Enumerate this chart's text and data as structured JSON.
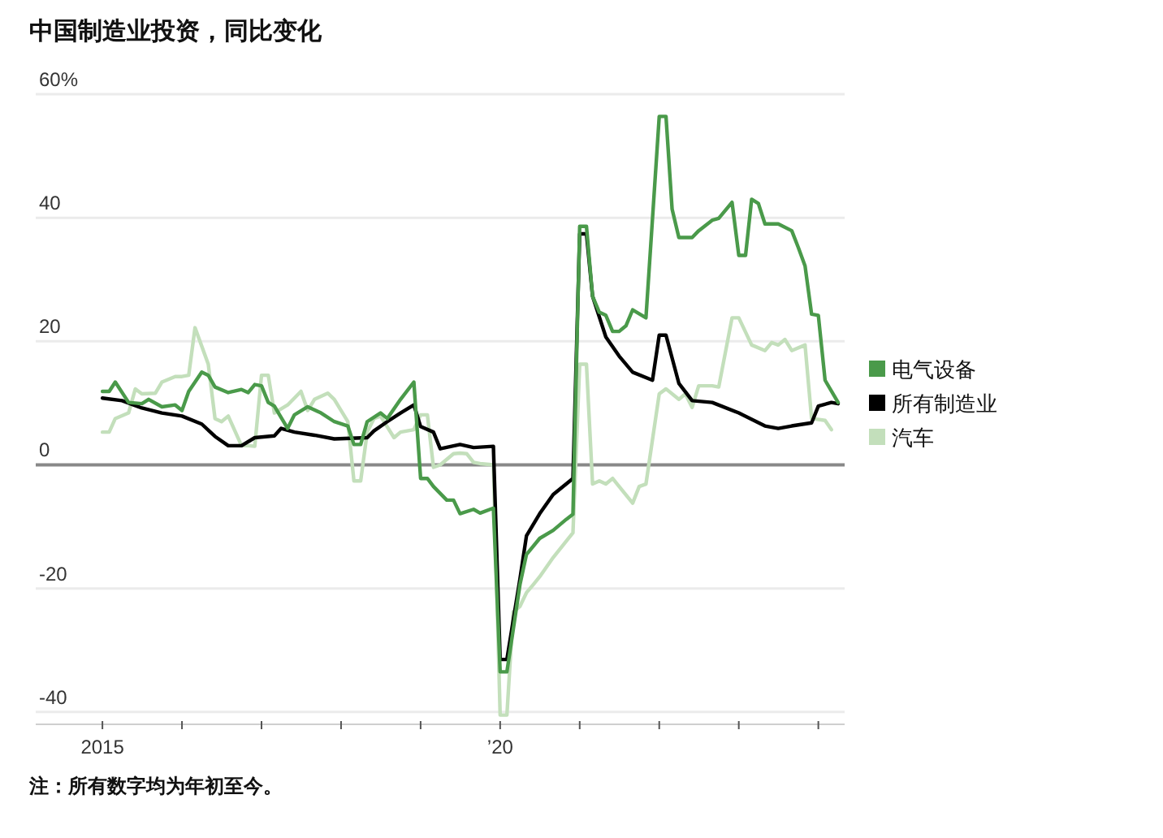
{
  "chart_data": {
    "type": "line",
    "title": "中国制造业投资，同比变化",
    "annotations": [
      "注：所有数字均为年初至今。"
    ],
    "xlim": [
      "2014-03",
      "2024-05"
    ],
    "xticks": [
      {
        "value": "2015-01",
        "label": "2015"
      },
      {
        "value": "2016-01",
        "label": null
      },
      {
        "value": "2017-01",
        "label": null
      },
      {
        "value": "2018-01",
        "label": null
      },
      {
        "value": "2019-01",
        "label": null
      },
      {
        "value": "2020-01",
        "label": "’20"
      },
      {
        "value": "2021-01",
        "label": null
      },
      {
        "value": "2022-01",
        "label": null
      },
      {
        "value": "2023-01",
        "label": null
      },
      {
        "value": "2024-01",
        "label": null
      }
    ],
    "ylim": [
      -42,
      60
    ],
    "yticks": [
      -40,
      -20,
      0,
      20,
      40,
      {
        "value": 60,
        "label": "60%"
      }
    ],
    "grid": "y",
    "legend": "right",
    "series": [
      {
        "name": "电气设备",
        "color": "#4a9a4a",
        "x": [
          "2015-01",
          "2015-02",
          "2015-03",
          "2015-05",
          "2015-07",
          "2015-08",
          "2015-10",
          "2015-12",
          "2016-01",
          "2016-02",
          "2016-04",
          "2016-05",
          "2016-06",
          "2016-08",
          "2016-10",
          "2016-11",
          "2016-12",
          "2017-01",
          "2017-02",
          "2017-03",
          "2017-05",
          "2017-06",
          "2017-08",
          "2017-10",
          "2017-12",
          "2018-02",
          "2018-03",
          "2018-04",
          "2018-05",
          "2018-07",
          "2018-08",
          "2018-10",
          "2018-12",
          "2019-01",
          "2019-02",
          "2019-03",
          "2019-05",
          "2019-06",
          "2019-07",
          "2019-09",
          "2019-10",
          "2019-12",
          "2020-01",
          "2020-02",
          "2020-04",
          "2020-05",
          "2020-07",
          "2020-09",
          "2020-11",
          "2020-12",
          "2021-01",
          "2021-02",
          "2021-03",
          "2021-04",
          "2021-05",
          "2021-06",
          "2021-07",
          "2021-08",
          "2021-09",
          "2021-11",
          "2022-01",
          "2022-02",
          "2022-03",
          "2022-04",
          "2022-06",
          "2022-07",
          "2022-09",
          "2022-10",
          "2022-12",
          "2023-01",
          "2023-02",
          "2023-03",
          "2023-04",
          "2023-05",
          "2023-07",
          "2023-09",
          "2023-10",
          "2023-11",
          "2023-12",
          "2024-01",
          "2024-02",
          "2024-04"
        ],
        "values": [
          11.9,
          11.9,
          13.4,
          10.1,
          9.9,
          10.6,
          9.4,
          9.7,
          8.8,
          11.9,
          15,
          14.5,
          12.6,
          11.7,
          12.2,
          11.7,
          13,
          12.8,
          10.1,
          9.5,
          5.9,
          8.1,
          9.4,
          8.4,
          7,
          6.3,
          3.3,
          3.3,
          7,
          8.4,
          7.5,
          10.6,
          13.4,
          -2.2,
          -2.2,
          -3.5,
          -5.7,
          -5.7,
          -7.9,
          -7.2,
          -7.8,
          -7,
          -33.5,
          -33.5,
          -19.4,
          -14.5,
          -11.9,
          -10.6,
          -8.8,
          -8,
          38.6,
          38.6,
          27.3,
          24.7,
          24.2,
          21.6,
          21.6,
          22.5,
          25.1,
          23.8,
          56.4,
          56.4,
          41.4,
          36.8,
          36.8,
          37.9,
          39.6,
          39.9,
          42.5,
          33.9,
          33.9,
          43,
          42.3,
          39,
          39,
          37.9,
          35.2,
          32.2,
          24.4,
          24.2,
          13.7,
          10.1
        ]
      },
      {
        "name": "所有制造业",
        "color": "#000000",
        "x": [
          "2015-01",
          "2015-04",
          "2015-07",
          "2015-10",
          "2016-01",
          "2016-04",
          "2016-06",
          "2016-08",
          "2016-10",
          "2016-12",
          "2017-03",
          "2017-04",
          "2017-06",
          "2017-09",
          "2017-12",
          "2018-05",
          "2018-06",
          "2018-08",
          "2018-10",
          "2018-12",
          "2019-01",
          "2019-03",
          "2019-04",
          "2019-07",
          "2019-09",
          "2019-12",
          "2020-01",
          "2020-02",
          "2020-04",
          "2020-05",
          "2020-07",
          "2020-09",
          "2020-12",
          "2021-01",
          "2021-02",
          "2021-03",
          "2021-05",
          "2021-07",
          "2021-09",
          "2021-12",
          "2022-01",
          "2022-02",
          "2022-04",
          "2022-06",
          "2022-09",
          "2023-01",
          "2023-05",
          "2023-07",
          "2023-09",
          "2023-12",
          "2024-01",
          "2024-03",
          "2024-04"
        ],
        "values": [
          10.8,
          10.4,
          9.2,
          8.4,
          7.9,
          6.6,
          4.6,
          3.1,
          3.1,
          4.4,
          4.7,
          5.9,
          5.3,
          4.8,
          4.2,
          4.4,
          5.5,
          7,
          8.4,
          9.7,
          6.2,
          5.3,
          2.6,
          3.3,
          2.8,
          3,
          -31.5,
          -31.5,
          -18.5,
          -11.5,
          -7.9,
          -4.8,
          -2.2,
          37.4,
          37.4,
          27.3,
          20.7,
          17.6,
          15,
          13.7,
          21,
          21,
          13.2,
          10.4,
          10.1,
          8.4,
          6.3,
          5.9,
          6.3,
          6.8,
          9.5,
          10.1,
          9.9
        ]
      },
      {
        "name": "汽车",
        "color": "#c3dfbb",
        "x": [
          "2015-01",
          "2015-02",
          "2015-03",
          "2015-05",
          "2015-06",
          "2015-07",
          "2015-09",
          "2015-10",
          "2015-12",
          "2016-01",
          "2016-02",
          "2016-03",
          "2016-05",
          "2016-06",
          "2016-07",
          "2016-08",
          "2016-10",
          "2016-11",
          "2016-12",
          "2017-01",
          "2017-02",
          "2017-03",
          "2017-05",
          "2017-07",
          "2017-08",
          "2017-09",
          "2017-11",
          "2017-12",
          "2018-02",
          "2018-03",
          "2018-04",
          "2018-05",
          "2018-06",
          "2018-07",
          "2018-09",
          "2018-10",
          "2018-12",
          "2019-01",
          "2019-02",
          "2019-03",
          "2019-04",
          "2019-06",
          "2019-07",
          "2019-08",
          "2019-09",
          "2019-10",
          "2019-12",
          "2020-01",
          "2020-02",
          "2020-03",
          "2020-04",
          "2020-05",
          "2020-06",
          "2020-07",
          "2020-09",
          "2020-11",
          "2020-12",
          "2021-01",
          "2021-02",
          "2021-03",
          "2021-04",
          "2021-05",
          "2021-06",
          "2021-07",
          "2021-09",
          "2021-10",
          "2021-11",
          "2022-01",
          "2022-02",
          "2022-04",
          "2022-05",
          "2022-06",
          "2022-07",
          "2022-09",
          "2022-10",
          "2022-12",
          "2023-01",
          "2023-03",
          "2023-05",
          "2023-06",
          "2023-07",
          "2023-08",
          "2023-09",
          "2023-11",
          "2023-12",
          "2024-02",
          "2024-03"
        ],
        "values": [
          5.3,
          5.3,
          7.5,
          8.4,
          12.3,
          11.5,
          11.6,
          13.4,
          14.3,
          14.3,
          14.5,
          22.2,
          16.3,
          7.5,
          7,
          7.9,
          3.1,
          3.1,
          3,
          14.5,
          14.5,
          8.4,
          9.7,
          11.9,
          8.8,
          10.6,
          11.6,
          10.6,
          7,
          -2.6,
          -2.6,
          5.3,
          7.5,
          7.9,
          4.4,
          5.3,
          5.7,
          8.1,
          8.1,
          -0.4,
          0,
          1.8,
          1.9,
          1.8,
          0.4,
          0.2,
          0,
          -40.5,
          -40.5,
          -23.8,
          -22.9,
          -20.7,
          -19.4,
          -18.1,
          -15,
          -12.3,
          -11,
          16.3,
          16.3,
          -3.1,
          -2.6,
          -3.1,
          -2.2,
          -3.5,
          -6.2,
          -3.5,
          -3.1,
          11.5,
          12.3,
          10.6,
          11.5,
          9.3,
          12.8,
          12.8,
          12.6,
          23.8,
          23.8,
          19.4,
          18.5,
          19.8,
          19.4,
          20.3,
          18.5,
          19.4,
          7.5,
          7.2,
          5.7
        ]
      }
    ]
  }
}
